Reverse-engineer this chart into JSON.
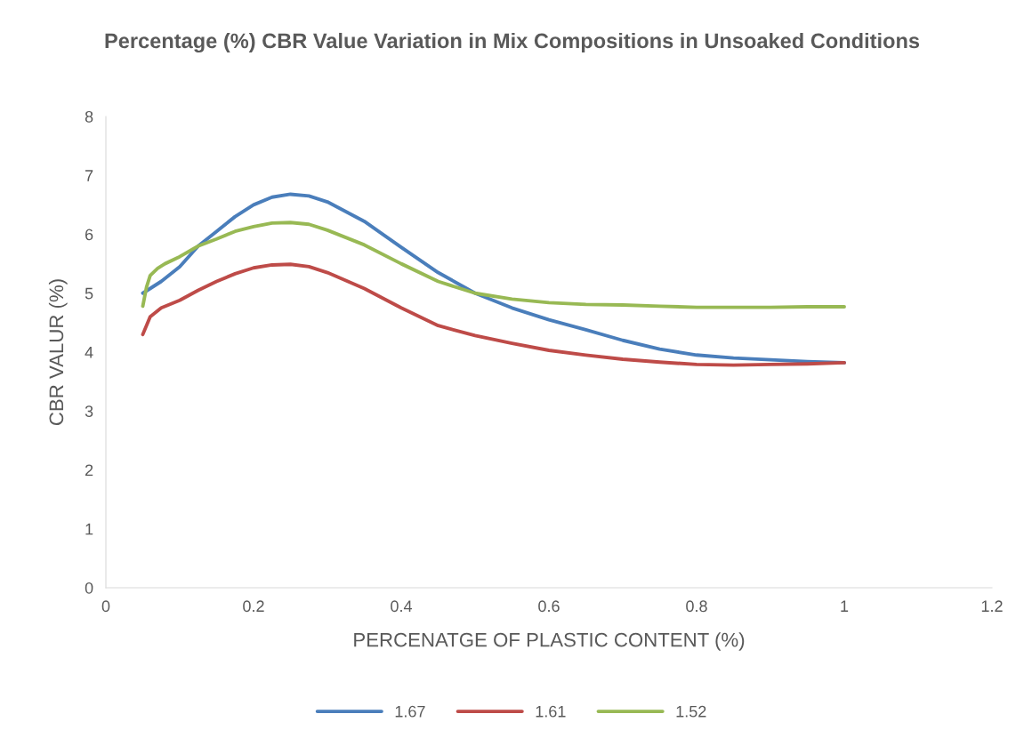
{
  "chart_data": {
    "type": "line",
    "title": "Percentage (%) CBR Value Variation in Mix Compositions in Unsoaked Conditions",
    "xlabel": "PERCENATGE OF PLASTIC CONTENT (%)",
    "ylabel": "CBR VALUR (%)",
    "xlim": [
      0,
      1.2
    ],
    "xticks": [
      0,
      0.2,
      0.4,
      0.6,
      0.8,
      1,
      1.2
    ],
    "ylim": [
      0,
      8
    ],
    "yticks": [
      0,
      1,
      2,
      3,
      4,
      5,
      6,
      7,
      8
    ],
    "grid": false,
    "legend": "bottom",
    "marker": "none",
    "line_style": "solid",
    "series": [
      {
        "name": "1.67",
        "color": "#4a7ebb",
        "x": [
          0.05,
          0.075,
          0.1,
          0.125,
          0.15,
          0.175,
          0.2,
          0.225,
          0.25,
          0.275,
          0.3,
          0.35,
          0.4,
          0.45,
          0.5,
          0.55,
          0.6,
          0.65,
          0.7,
          0.75,
          0.8,
          0.85,
          0.9,
          0.95,
          1
        ],
        "values": [
          5.0,
          5.2,
          5.45,
          5.8,
          6.05,
          6.3,
          6.5,
          6.63,
          6.68,
          6.65,
          6.55,
          6.22,
          5.78,
          5.35,
          5.0,
          4.75,
          4.55,
          4.38,
          4.2,
          4.05,
          3.95,
          3.9,
          3.87,
          3.84,
          3.82
        ]
      },
      {
        "name": "1.61",
        "color": "#be4b48",
        "x": [
          0.05,
          0.06,
          0.075,
          0.1,
          0.125,
          0.15,
          0.175,
          0.2,
          0.225,
          0.25,
          0.275,
          0.3,
          0.35,
          0.4,
          0.45,
          0.5,
          0.55,
          0.6,
          0.65,
          0.7,
          0.75,
          0.8,
          0.85,
          0.9,
          0.95,
          1
        ],
        "values": [
          4.3,
          4.6,
          4.75,
          4.88,
          5.05,
          5.2,
          5.33,
          5.43,
          5.48,
          5.49,
          5.45,
          5.35,
          5.08,
          4.75,
          4.45,
          4.28,
          4.15,
          4.03,
          3.95,
          3.88,
          3.83,
          3.79,
          3.78,
          3.79,
          3.8,
          3.82
        ]
      },
      {
        "name": "1.52",
        "color": "#98b954",
        "x": [
          0.05,
          0.055,
          0.06,
          0.07,
          0.08,
          0.1,
          0.125,
          0.15,
          0.175,
          0.2,
          0.225,
          0.25,
          0.275,
          0.3,
          0.35,
          0.4,
          0.45,
          0.5,
          0.55,
          0.6,
          0.65,
          0.7,
          0.75,
          0.8,
          0.85,
          0.9,
          0.95,
          1
        ],
        "values": [
          4.78,
          5.1,
          5.3,
          5.42,
          5.5,
          5.62,
          5.8,
          5.92,
          6.05,
          6.13,
          6.19,
          6.2,
          6.17,
          6.07,
          5.82,
          5.5,
          5.2,
          5.0,
          4.9,
          4.84,
          4.81,
          4.8,
          4.78,
          4.76,
          4.76,
          4.76,
          4.77,
          4.77
        ]
      }
    ]
  }
}
